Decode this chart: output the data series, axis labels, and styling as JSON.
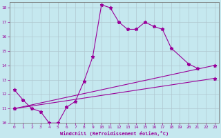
{
  "xlabel": "Windchill (Refroidissement éolien,°C)",
  "xlim": [
    -0.5,
    23.5
  ],
  "ylim": [
    10,
    18.4
  ],
  "yticks": [
    10,
    11,
    12,
    13,
    14,
    15,
    16,
    17,
    18
  ],
  "xticks": [
    0,
    1,
    2,
    3,
    4,
    5,
    6,
    7,
    8,
    9,
    10,
    11,
    12,
    13,
    14,
    15,
    16,
    17,
    18,
    19,
    20,
    21,
    22,
    23
  ],
  "bg_color": "#c5e8ef",
  "grid_color": "#b0c8d0",
  "line_color": "#990099",
  "curve1_x": [
    0,
    1,
    2,
    3,
    4,
    5,
    6,
    7,
    8,
    9,
    10,
    11,
    12,
    13,
    14,
    15,
    16,
    17,
    18,
    20,
    21
  ],
  "curve1_y": [
    12.3,
    11.6,
    11.0,
    10.8,
    10.0,
    10.0,
    11.1,
    11.5,
    12.9,
    14.6,
    18.2,
    18.0,
    17.0,
    16.5,
    16.5,
    17.0,
    16.7,
    16.5,
    15.2,
    14.1,
    13.8
  ],
  "curve2_x": [
    0,
    23
  ],
  "curve2_y": [
    11.0,
    14.0
  ],
  "curve3_x": [
    0,
    23
  ],
  "curve3_y": [
    11.0,
    13.1
  ]
}
